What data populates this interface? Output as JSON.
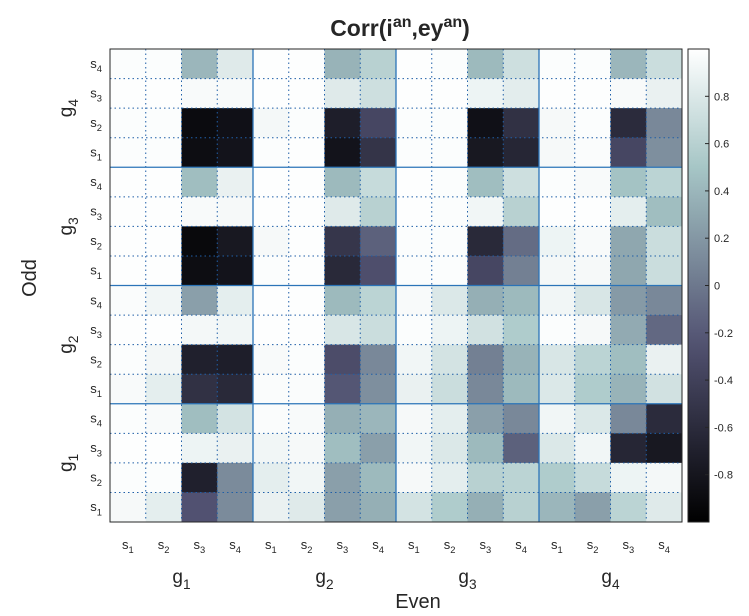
{
  "chart_data": {
    "type": "heatmap",
    "title": {
      "prefix": "Corr(i",
      "sup1": "an",
      "mid": ",ey",
      "sup2": "an",
      "suffix": ")"
    },
    "xlabel": "Even",
    "ylabel": "Odd",
    "x_groups": [
      "g1",
      "g2",
      "g3",
      "g4"
    ],
    "y_groups_top_to_bottom": [
      "g4",
      "g3",
      "g2",
      "g1"
    ],
    "sublabels": [
      "s1",
      "s2",
      "s3",
      "s4"
    ],
    "rows_top_to_bottom": [
      "g4s4",
      "g4s3",
      "g4s2",
      "g4s1",
      "g3s4",
      "g3s3",
      "g3s2",
      "g3s1",
      "g2s4",
      "g2s3",
      "g2s2",
      "g2s1",
      "g1s4",
      "g1s3",
      "g1s2",
      "g1s1"
    ],
    "columns_left_to_right": [
      "g1s1",
      "g1s2",
      "g1s3",
      "g1s4",
      "g2s1",
      "g2s2",
      "g2s3",
      "g2s4",
      "g3s1",
      "g3s2",
      "g3s3",
      "g3s4",
      "g4s1",
      "g4s2",
      "g4s3",
      "g4s4"
    ],
    "values": [
      [
        0.98,
        0.98,
        0.4,
        0.82,
        0.99,
        0.99,
        0.38,
        0.6,
        0.99,
        0.98,
        0.42,
        0.72,
        0.98,
        0.98,
        0.4,
        0.7
      ],
      [
        0.99,
        0.99,
        0.96,
        0.96,
        0.99,
        0.99,
        0.82,
        0.72,
        0.99,
        0.99,
        0.9,
        0.84,
        0.99,
        0.99,
        0.96,
        0.88
      ],
      [
        0.98,
        0.98,
        -0.9,
        -0.85,
        0.94,
        0.98,
        -0.72,
        -0.35,
        0.98,
        0.98,
        -0.85,
        -0.55,
        0.95,
        0.98,
        -0.6,
        0.1
      ],
      [
        0.98,
        0.98,
        -0.88,
        -0.82,
        0.98,
        0.99,
        -0.82,
        -0.52,
        0.98,
        0.98,
        -0.78,
        -0.65,
        0.95,
        0.97,
        -0.35,
        0.15
      ],
      [
        0.99,
        0.99,
        0.45,
        0.88,
        0.99,
        0.99,
        0.42,
        0.68,
        0.99,
        0.98,
        0.45,
        0.72,
        0.98,
        0.96,
        0.48,
        0.62
      ],
      [
        0.99,
        0.99,
        0.96,
        0.95,
        0.99,
        0.99,
        0.82,
        0.6,
        0.99,
        0.98,
        0.92,
        0.6,
        0.99,
        0.99,
        0.85,
        0.45
      ],
      [
        0.99,
        0.99,
        -0.92,
        -0.78,
        0.95,
        0.99,
        -0.5,
        -0.15,
        0.98,
        0.98,
        -0.62,
        -0.08,
        0.9,
        0.96,
        0.3,
        0.7
      ],
      [
        0.99,
        0.99,
        -0.88,
        -0.82,
        0.98,
        0.99,
        -0.62,
        -0.28,
        0.98,
        0.98,
        -0.35,
        0.05,
        0.94,
        0.95,
        0.3,
        0.7
      ],
      [
        0.97,
        0.92,
        0.25,
        0.85,
        0.99,
        0.99,
        0.42,
        0.62,
        0.96,
        0.8,
        0.35,
        0.42,
        0.92,
        0.78,
        0.22,
        0.1
      ],
      [
        0.99,
        0.99,
        0.94,
        0.92,
        0.99,
        0.99,
        0.78,
        0.7,
        0.98,
        0.9,
        0.74,
        0.55,
        0.98,
        0.95,
        0.32,
        -0.1
      ],
      [
        0.98,
        0.93,
        -0.7,
        -0.72,
        0.96,
        0.98,
        -0.3,
        0.1,
        0.92,
        0.75,
        0.05,
        0.38,
        0.78,
        0.62,
        0.45,
        0.88
      ],
      [
        0.96,
        0.85,
        -0.55,
        -0.62,
        0.97,
        0.97,
        -0.22,
        0.15,
        0.88,
        0.7,
        0.1,
        0.42,
        0.8,
        0.55,
        0.38,
        0.74
      ],
      [
        0.98,
        0.96,
        0.45,
        0.75,
        0.97,
        0.96,
        0.35,
        0.4,
        0.95,
        0.85,
        0.25,
        0.1,
        0.92,
        0.8,
        0.1,
        -0.6
      ],
      [
        0.99,
        0.99,
        0.9,
        0.88,
        0.92,
        0.95,
        0.45,
        0.25,
        0.92,
        0.8,
        0.42,
        -0.15,
        0.8,
        0.92,
        -0.65,
        -0.78
      ],
      [
        0.98,
        0.98,
        -0.7,
        0.12,
        0.85,
        0.92,
        0.25,
        0.42,
        0.95,
        0.85,
        0.6,
        0.62,
        0.55,
        0.68,
        0.9,
        0.94
      ],
      [
        0.95,
        0.85,
        -0.25,
        0.12,
        0.88,
        0.82,
        0.25,
        0.35,
        0.75,
        0.55,
        0.35,
        0.6,
        0.4,
        0.25,
        0.62,
        0.82
      ]
    ],
    "colorbar": {
      "ticks": [
        0.8,
        0.6,
        0.4,
        0.2,
        0,
        -0.2,
        -0.4,
        -0.6,
        -0.8
      ],
      "range": [
        -1,
        1
      ]
    },
    "grid": "dotted-minor-solid-group",
    "colormap": "bone"
  }
}
